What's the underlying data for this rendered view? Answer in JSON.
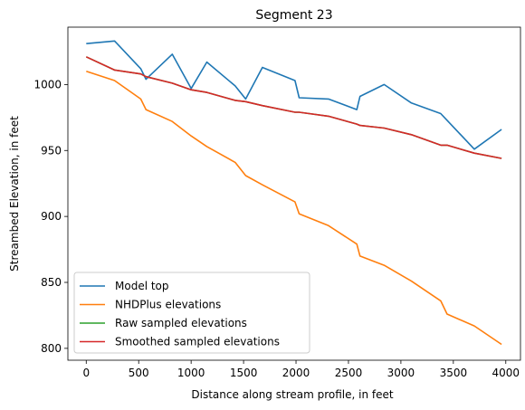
{
  "chart_data": {
    "type": "line",
    "title": "Segment 23",
    "xlabel": "Distance along stream profile, in feet",
    "ylabel": "Streambed Elevation, in feet",
    "xlim": [
      -175,
      4140
    ],
    "ylim": [
      791,
      1043.5
    ],
    "xticks": [
      0,
      500,
      1000,
      1500,
      2000,
      2500,
      3000,
      3500,
      4000
    ],
    "yticks": [
      800,
      850,
      900,
      950,
      1000
    ],
    "legend_position": "lower-left",
    "series": [
      {
        "name": "Model top",
        "color": "#1f77b4",
        "x": [
          0,
          270,
          520,
          570,
          820,
          1000,
          1150,
          1420,
          1520,
          1680,
          1990,
          2030,
          2310,
          2580,
          2610,
          2840,
          3100,
          3380,
          3700,
          3960
        ],
        "y": [
          1031,
          1033,
          1012,
          1004,
          1023,
          997,
          1017,
          999,
          989,
          1013,
          1003,
          990,
          989,
          981,
          991,
          1000,
          986,
          978,
          951,
          966
        ]
      },
      {
        "name": "NHDPlus elevations",
        "color": "#ff7f0e",
        "x": [
          0,
          270,
          520,
          570,
          820,
          1000,
          1150,
          1420,
          1520,
          1680,
          1990,
          2030,
          2310,
          2580,
          2610,
          2840,
          3100,
          3380,
          3440,
          3700,
          3960
        ],
        "y": [
          1010,
          1003,
          989,
          981,
          972,
          961,
          953,
          941,
          931,
          924,
          911,
          902,
          893,
          879,
          870,
          863,
          851,
          836,
          826,
          817,
          803
        ]
      },
      {
        "name": "Raw sampled elevations",
        "color": "#2ca02c",
        "x": [
          0,
          270,
          520,
          570,
          820,
          1000,
          1150,
          1420,
          1520,
          1680,
          1990,
          2030,
          2310,
          2580,
          2610,
          2840,
          3100,
          3380,
          3440,
          3700,
          3960
        ],
        "y": [
          1021,
          1011,
          1008,
          1006,
          1001,
          996,
          994,
          988,
          987,
          984,
          979,
          979,
          976,
          970,
          969,
          967,
          962,
          954,
          954,
          948,
          944
        ]
      },
      {
        "name": "Smoothed sampled elevations",
        "color": "#d62728",
        "x": [
          0,
          270,
          520,
          570,
          820,
          1000,
          1150,
          1420,
          1520,
          1680,
          1990,
          2030,
          2310,
          2580,
          2610,
          2840,
          3100,
          3380,
          3440,
          3700,
          3960
        ],
        "y": [
          1021,
          1011,
          1008,
          1006,
          1001,
          996,
          994,
          988,
          987,
          984,
          979,
          979,
          976,
          970,
          969,
          967,
          962,
          954,
          954,
          948,
          944
        ]
      }
    ]
  }
}
